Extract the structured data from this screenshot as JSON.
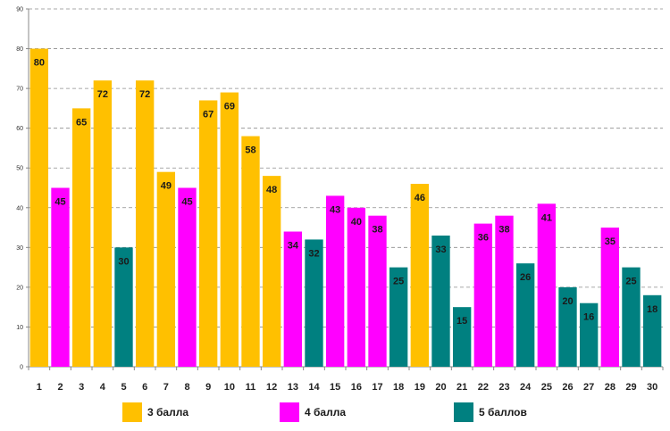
{
  "chart_data": {
    "type": "bar",
    "title": "",
    "xlabel": "",
    "ylabel": "",
    "ylim": [
      0,
      90
    ],
    "yticks": [
      0,
      10,
      20,
      30,
      40,
      50,
      60,
      70,
      80,
      90
    ],
    "grid": true,
    "legend_position": "bottom",
    "categories": [
      "1",
      "2",
      "3",
      "4",
      "5",
      "6",
      "7",
      "8",
      "9",
      "10",
      "11",
      "12",
      "13",
      "14",
      "15",
      "16",
      "17",
      "18",
      "19",
      "20",
      "21",
      "22",
      "23",
      "24",
      "25",
      "26",
      "27",
      "28",
      "29",
      "30"
    ],
    "values": [
      80,
      45,
      65,
      72,
      30,
      72,
      49,
      45,
      67,
      69,
      58,
      48,
      34,
      32,
      43,
      40,
      38,
      25,
      46,
      33,
      15,
      36,
      38,
      26,
      41,
      20,
      16,
      35,
      25,
      18
    ],
    "groups": [
      "g3",
      "g4",
      "g3",
      "g3",
      "g5",
      "g3",
      "g3",
      "g4",
      "g3",
      "g3",
      "g3",
      "g3",
      "g4",
      "g5",
      "g4",
      "g4",
      "g4",
      "g5",
      "g3",
      "g5",
      "g5",
      "g4",
      "g4",
      "g5",
      "g4",
      "g5",
      "g5",
      "g4",
      "g5",
      "g5"
    ],
    "series": [
      {
        "key": "g3",
        "name": "3 балла",
        "color": "#FFC000"
      },
      {
        "key": "g4",
        "name": "4 балла",
        "color": "#FF00FF"
      },
      {
        "key": "g5",
        "name": "5 баллов",
        "color": "#008080"
      }
    ]
  }
}
